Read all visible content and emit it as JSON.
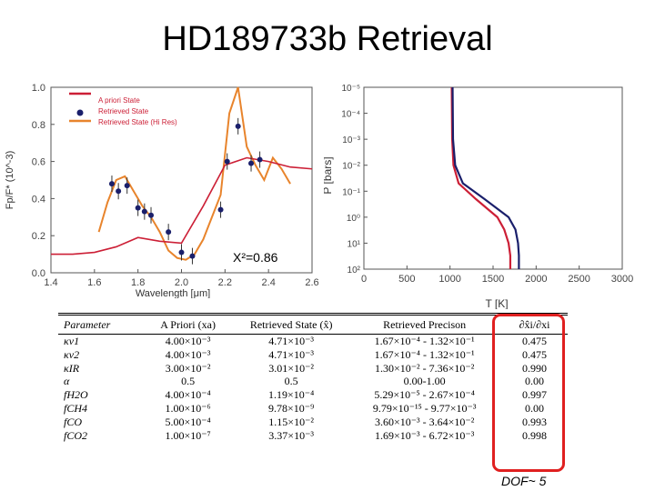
{
  "title": "HD189733b Retrieval",
  "chart_data": [
    {
      "type": "line",
      "xlabel": "Wavelength [μm]",
      "ylabel": "Fp/F* (10^-3)",
      "xlim": [
        1.4,
        2.6
      ],
      "ylim": [
        0.0,
        1.0
      ],
      "xticks": [
        "1.4",
        "1.6",
        "1.8",
        "2.0",
        "2.2",
        "2.4",
        "2.6"
      ],
      "yticks": [
        "0.0",
        "0.2",
        "0.4",
        "0.6",
        "0.8",
        "1.0"
      ],
      "legend": [
        "A priori State",
        "Retrieved State",
        "Retrieved State (Hi Res)"
      ],
      "legend_position": "top-left",
      "annotation": "X²=0.86",
      "colors": {
        "apriori": "#cc1f36",
        "points": "#1a1f6b",
        "hires": "#e8842c"
      },
      "series": [
        {
          "name": "A priori State",
          "x": [
            1.4,
            1.5,
            1.6,
            1.7,
            1.8,
            1.9,
            2.0,
            2.1,
            2.2,
            2.3,
            2.4,
            2.5,
            2.6
          ],
          "values": [
            0.1,
            0.1,
            0.11,
            0.14,
            0.19,
            0.17,
            0.16,
            0.36,
            0.58,
            0.62,
            0.6,
            0.57,
            0.56
          ]
        },
        {
          "name": "Retrieved State",
          "x": [
            1.68,
            1.71,
            1.75,
            1.8,
            1.83,
            1.86,
            1.94,
            2.0,
            2.05,
            2.18,
            2.21,
            2.26,
            2.32,
            2.36
          ],
          "values": [
            0.48,
            0.44,
            0.47,
            0.35,
            0.33,
            0.31,
            0.22,
            0.11,
            0.09,
            0.34,
            0.6,
            0.79,
            0.59,
            0.61
          ]
        },
        {
          "name": "Retrieved State (Hi Res)",
          "x": [
            1.62,
            1.66,
            1.7,
            1.74,
            1.78,
            1.82,
            1.86,
            1.9,
            1.94,
            1.98,
            2.02,
            2.06,
            2.1,
            2.14,
            2.18,
            2.22,
            2.26,
            2.3,
            2.34,
            2.38,
            2.42,
            2.46,
            2.5
          ],
          "values": [
            0.22,
            0.38,
            0.5,
            0.52,
            0.44,
            0.36,
            0.3,
            0.22,
            0.12,
            0.08,
            0.07,
            0.1,
            0.18,
            0.3,
            0.42,
            0.86,
            1.0,
            0.68,
            0.58,
            0.5,
            0.62,
            0.56,
            0.48
          ]
        }
      ]
    },
    {
      "type": "line",
      "xlabel": "T [K]",
      "ylabel": "P [bars]",
      "xlim": [
        0,
        3000
      ],
      "ylim": [
        100,
        1e-05
      ],
      "yscale": "log",
      "xticks": [
        "0",
        "500",
        "1000",
        "1500",
        "2000",
        "2500",
        "3000"
      ],
      "yticks": [
        "10⁻⁵",
        "10⁻⁴",
        "10⁻³",
        "10⁻²",
        "10⁻¹",
        "10⁰",
        "10¹",
        "10²"
      ],
      "colors": {
        "retrieved": "#cc1f36",
        "hires": "#1a1f6b"
      },
      "series": [
        {
          "x": [
            1020,
            1025,
            1040,
            1100,
            1300,
            1550,
            1630,
            1680,
            1700,
            1700
          ],
          "values": [
            1e-05,
            0.001,
            0.01,
            0.05,
            0.2,
            1,
            3,
            10,
            30,
            100
          ]
        },
        {
          "x": [
            1030,
            1035,
            1060,
            1150,
            1400,
            1680,
            1760,
            1790,
            1800,
            1800
          ],
          "values": [
            1e-05,
            0.001,
            0.01,
            0.05,
            0.2,
            1,
            3,
            10,
            30,
            100
          ]
        }
      ]
    }
  ],
  "table": {
    "headers": [
      "Parameter",
      "A Priori (xa)",
      "Retrieved State (x̂)",
      "Retrieved Precison",
      "∂x̂i/∂xi"
    ],
    "rows": [
      [
        "κv1",
        "4.00×10⁻³",
        "4.71×10⁻³",
        "1.67×10⁻⁴ - 1.32×10⁻¹",
        "0.475"
      ],
      [
        "κv2",
        "4.00×10⁻³",
        "4.71×10⁻³",
        "1.67×10⁻⁴ - 1.32×10⁻¹",
        "0.475"
      ],
      [
        "κIR",
        "3.00×10⁻²",
        "3.01×10⁻²",
        "1.30×10⁻² - 7.36×10⁻²",
        "0.990"
      ],
      [
        "α",
        "0.5",
        "0.5",
        "0.00-1.00",
        "0.00"
      ],
      [
        "fH2O",
        "4.00×10⁻⁴",
        "1.19×10⁻⁴",
        "5.29×10⁻⁵ - 2.67×10⁻⁴",
        "0.997"
      ],
      [
        "fCH4",
        "1.00×10⁻⁶",
        "9.78×10⁻⁹",
        "9.79×10⁻¹⁵ - 9.77×10⁻³",
        "0.00"
      ],
      [
        "fCO",
        "5.00×10⁻⁴",
        "1.15×10⁻²",
        "3.60×10⁻³ - 3.64×10⁻²",
        "0.993"
      ],
      [
        "fCO2",
        "1.00×10⁻⁷",
        "3.37×10⁻³",
        "1.69×10⁻³ - 6.72×10⁻³",
        "0.998"
      ]
    ],
    "footnote": "DOF~ 5"
  }
}
